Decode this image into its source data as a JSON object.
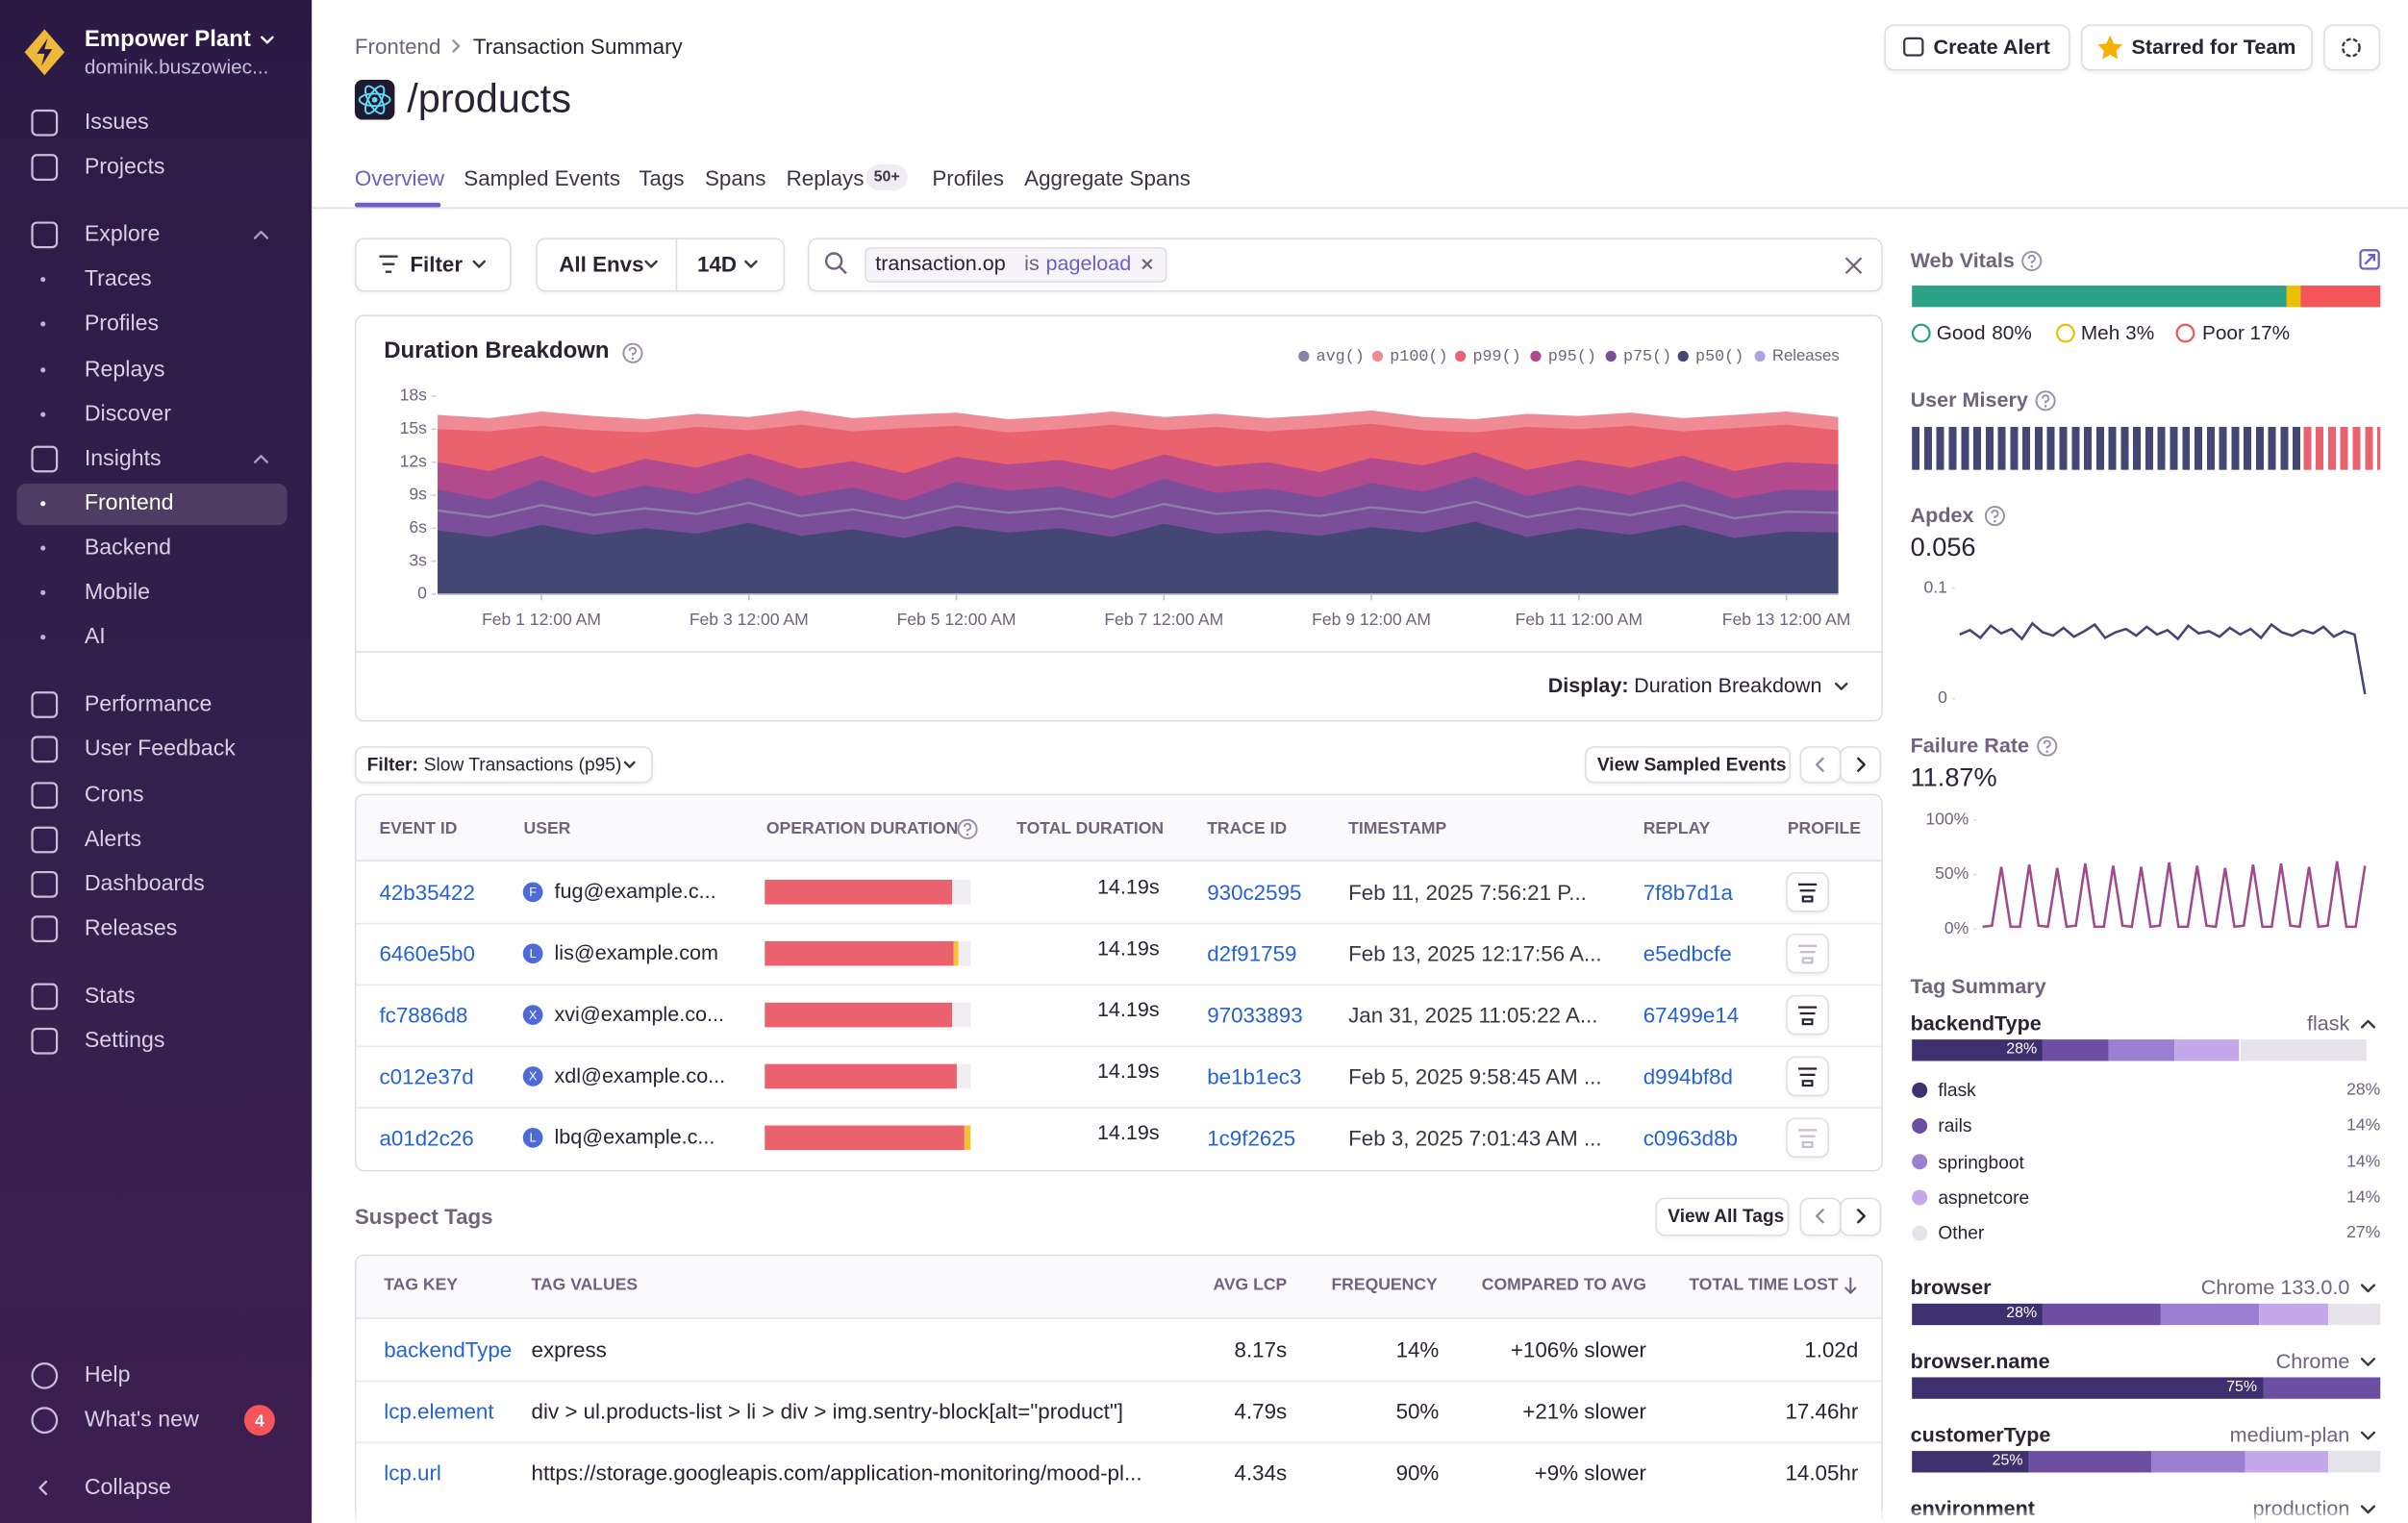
{
  "sidebar": {
    "org": "Empower Plant",
    "user": "dominik.buszowiec...",
    "nav": [
      "Issues",
      "Projects",
      "Explore",
      "Traces",
      "Profiles",
      "Replays",
      "Discover",
      "Insights",
      "Frontend",
      "Backend",
      "Mobile",
      "AI",
      "Performance",
      "User Feedback",
      "Crons",
      "Alerts",
      "Dashboards",
      "Releases",
      "Stats",
      "Settings"
    ],
    "bottom": [
      "Help",
      "What's new",
      "Collapse"
    ],
    "whats_new_count": 4
  },
  "header": {
    "breadcrumbs": [
      "Frontend",
      "Transaction Summary"
    ],
    "title": "/products",
    "buttons": [
      "Create Alert",
      "Starred for Team"
    ],
    "tabs": [
      "Overview",
      "Sampled Events",
      "Tags",
      "Spans",
      "Replays",
      "Profiles",
      "Aggregate Spans"
    ],
    "replays_badge": "50+"
  },
  "filters": {
    "filter": "Filter",
    "env": "All Envs",
    "period": "14D",
    "search_key": "transaction.op",
    "search_op": "is",
    "search_value": "pageload"
  },
  "chart_data": [
    {
      "type": "area",
      "title": "Duration Breakdown",
      "x": [
        "Jan 31 12:00 AM",
        "Jan 31 12:00 PM",
        "Feb 1 12:00 AM",
        "Feb 1 12:00 PM",
        "Feb 2 12:00 AM",
        "Feb 2 12:00 PM",
        "Feb 3 12:00 AM",
        "Feb 3 12:00 PM",
        "Feb 4 12:00 AM",
        "Feb 4 12:00 PM",
        "Feb 5 12:00 AM",
        "Feb 5 12:00 PM",
        "Feb 6 12:00 AM",
        "Feb 6 12:00 PM",
        "Feb 7 12:00 AM",
        "Feb 7 12:00 PM",
        "Feb 8 12:00 AM",
        "Feb 8 12:00 PM",
        "Feb 9 12:00 AM",
        "Feb 9 12:00 PM",
        "Feb 10 12:00 AM",
        "Feb 10 12:00 PM",
        "Feb 11 12:00 AM",
        "Feb 11 12:00 PM",
        "Feb 12 12:00 AM",
        "Feb 12 12:00 PM",
        "Feb 13 12:00 AM",
        "Feb 13 12:00 PM"
      ],
      "xticks": [
        "Feb 1 12:00 AM",
        "Feb 3 12:00 AM",
        "Feb 5 12:00 AM",
        "Feb 7 12:00 AM",
        "Feb 9 12:00 AM",
        "Feb 11 12:00 AM",
        "Feb 13 12:00 AM"
      ],
      "ylim": [
        0,
        18
      ],
      "yticks": [
        0,
        {
          "value": 3,
          "label": "3s"
        },
        {
          "value": 6,
          "label": "6s"
        },
        {
          "value": 9,
          "label": "9s"
        },
        {
          "value": 12,
          "label": "12s"
        },
        {
          "value": 15,
          "label": "15s"
        },
        {
          "value": 18,
          "label": "18s"
        }
      ],
      "series": [
        {
          "name": "avg()",
          "color": "#8b80a8",
          "values": [
            7.6,
            7.0,
            8.1,
            7.2,
            7.8,
            7.3,
            8.3,
            7.1,
            7.7,
            6.9,
            8.0,
            7.4,
            7.8,
            7.0,
            8.2,
            7.3,
            7.6,
            7.1,
            7.9,
            7.4,
            8.4,
            7.0,
            7.8,
            7.2,
            8.1,
            6.9,
            7.5,
            7.4
          ]
        },
        {
          "name": "p100()",
          "color": "#f08a94",
          "values": [
            16.3,
            16.0,
            16.6,
            16.2,
            15.9,
            16.4,
            16.1,
            16.7,
            16.0,
            16.3,
            16.5,
            15.9,
            16.2,
            16.6,
            16.1,
            16.4,
            16.0,
            16.3,
            16.7,
            16.1,
            15.9,
            16.4,
            16.2,
            16.5,
            16.0,
            16.3,
            16.6,
            16.1
          ]
        },
        {
          "name": "p99()",
          "color": "#e9626e",
          "values": [
            15.0,
            14.8,
            15.3,
            14.9,
            14.7,
            15.2,
            14.9,
            15.4,
            14.8,
            15.1,
            15.3,
            14.7,
            15.0,
            15.4,
            14.9,
            15.2,
            14.8,
            15.1,
            15.5,
            14.9,
            14.7,
            15.2,
            15.0,
            15.3,
            14.8,
            15.1,
            15.4,
            14.9
          ]
        },
        {
          "name": "p95()",
          "color": "#b34a8e",
          "values": [
            12.0,
            11.2,
            12.6,
            11.0,
            12.3,
            11.5,
            12.8,
            11.4,
            12.1,
            11.0,
            12.5,
            11.8,
            12.2,
            11.3,
            12.7,
            11.6,
            12.0,
            11.1,
            12.4,
            11.7,
            12.9,
            11.3,
            12.2,
            11.5,
            12.6,
            11.2,
            12.0,
            11.8
          ]
        },
        {
          "name": "p75()",
          "color": "#7a4e99",
          "values": [
            9.5,
            8.6,
            10.4,
            8.8,
            9.9,
            9.1,
            10.6,
            8.9,
            9.7,
            8.5,
            10.2,
            9.4,
            9.8,
            8.7,
            10.5,
            9.2,
            9.6,
            8.8,
            10.1,
            9.3,
            10.7,
            8.9,
            9.9,
            9.0,
            10.3,
            8.7,
            9.5,
            9.4
          ]
        },
        {
          "name": "p50()",
          "color": "#444674",
          "values": [
            5.8,
            5.2,
            6.3,
            5.4,
            6.0,
            5.5,
            6.5,
            5.3,
            5.9,
            5.1,
            6.2,
            5.6,
            6.0,
            5.2,
            6.4,
            5.5,
            5.8,
            5.3,
            6.1,
            5.6,
            6.6,
            5.2,
            6.0,
            5.4,
            6.3,
            5.1,
            5.7,
            5.6
          ]
        }
      ],
      "releases": {
        "label": "Releases",
        "color": "#b0a3e4"
      },
      "display_label": "Display:",
      "display_value": "Duration Breakdown"
    },
    {
      "type": "line",
      "title": "Apdex",
      "value": 0.056,
      "color": "#444674",
      "ylim": [
        0,
        0.1
      ],
      "yticks": [
        0,
        0.1
      ],
      "values": [
        0.058,
        0.062,
        0.055,
        0.066,
        0.059,
        0.063,
        0.054,
        0.068,
        0.06,
        0.057,
        0.064,
        0.056,
        0.061,
        0.067,
        0.055,
        0.06,
        0.063,
        0.057,
        0.065,
        0.058,
        0.062,
        0.054,
        0.066,
        0.059,
        0.061,
        0.056,
        0.064,
        0.058,
        0.063,
        0.055,
        0.067,
        0.06,
        0.057,
        0.062,
        0.059,
        0.065,
        0.056,
        0.061,
        0.058,
        0.004
      ]
    },
    {
      "type": "line",
      "title": "Failure Rate",
      "value": 11.87,
      "value_label": "11.87%",
      "color": "#a04a8c",
      "ylim": [
        0,
        100
      ],
      "yticks": [
        {
          "value": 0,
          "label": "0%"
        },
        {
          "value": 50,
          "label": "50%"
        },
        {
          "value": 100,
          "label": "100%"
        }
      ],
      "values": [
        2,
        3,
        57,
        2,
        2,
        59,
        3,
        2,
        56,
        2,
        3,
        60,
        2,
        2,
        58,
        3,
        2,
        57,
        2,
        3,
        61,
        2,
        2,
        58,
        3,
        2,
        56,
        2,
        3,
        59,
        2,
        2,
        60,
        3,
        2,
        57,
        2,
        3,
        62,
        2,
        2,
        58
      ]
    }
  ],
  "events": {
    "filter_label": "Filter:",
    "filter_value": "Slow Transactions (p95)",
    "button": "View Sampled Events",
    "columns": [
      "EVENT ID",
      "USER",
      "OPERATION DURATION",
      "TOTAL DURATION",
      "TRACE ID",
      "TIMESTAMP",
      "REPLAY",
      "PROFILE"
    ],
    "op_colors": [
      "#e9626e",
      "#f2c230"
    ],
    "rows": [
      {
        "event_id": "42b35422",
        "initial": "F",
        "user": "fug@example.c...",
        "ops": [
          91
        ],
        "total_duration": "14.19s",
        "trace_id": "930c2595",
        "timestamp": "Feb 11, 2025 7:56:21 P...",
        "replay": "7f8b7d1a",
        "profile": true
      },
      {
        "event_id": "6460e5b0",
        "initial": "L",
        "user": "lis@example.com",
        "ops": [
          92,
          2
        ],
        "total_duration": "14.19s",
        "trace_id": "d2f91759",
        "timestamp": "Feb 13, 2025 12:17:56 A...",
        "replay": "e5edbcfe",
        "profile": false
      },
      {
        "event_id": "fc7886d8",
        "initial": "X",
        "user": "xvi@example.co...",
        "ops": [
          91
        ],
        "total_duration": "14.19s",
        "trace_id": "97033893",
        "timestamp": "Jan 31, 2025 11:05:22 A...",
        "replay": "67499e14",
        "profile": true
      },
      {
        "event_id": "c012e37d",
        "initial": "X",
        "user": "xdl@example.co...",
        "ops": [
          93
        ],
        "total_duration": "14.19s",
        "trace_id": "be1b1ec3",
        "timestamp": "Feb 5, 2025 9:58:45 AM ...",
        "replay": "d994bf8d",
        "profile": true
      },
      {
        "event_id": "a01d2c26",
        "initial": "L",
        "user": "lbq@example.c...",
        "ops": [
          97,
          3
        ],
        "total_duration": "14.19s",
        "trace_id": "1c9f2625",
        "timestamp": "Feb 3, 2025 7:01:43 AM ...",
        "replay": "c0963d8b",
        "profile": false
      }
    ]
  },
  "suspect_tags": {
    "title": "Suspect Tags",
    "button": "View All Tags",
    "columns": [
      "TAG KEY",
      "TAG VALUES",
      "AVG LCP",
      "FREQUENCY",
      "COMPARED TO AVG",
      "TOTAL TIME LOST"
    ],
    "rows": [
      [
        "backendType",
        "express",
        "8.17s",
        "14%",
        "+106% slower",
        "1.02d"
      ],
      [
        "lcp.element",
        "div > ul.products-list > li > div > img.sentry-block[alt=\"product\"]",
        "4.79s",
        "50%",
        "+21% slower",
        "17.46hr"
      ],
      [
        "lcp.url",
        "https://storage.googleapis.com/application-monitoring/mood-pl...",
        "4.34s",
        "90%",
        "+9% slower",
        "14.05hr"
      ]
    ]
  },
  "web_vitals": {
    "title": "Web Vitals",
    "items": [
      {
        "label": "Good",
        "value": 80,
        "value_label": "80%",
        "color": "#2ba185"
      },
      {
        "label": "Meh",
        "value": 3,
        "value_label": "3%",
        "color": "#ebc000"
      },
      {
        "label": "Poor",
        "value": 17,
        "value_label": "17%",
        "color": "#f55459"
      }
    ]
  },
  "user_misery": {
    "title": "User Misery"
  },
  "tag_summary": {
    "title": "Tag Summary",
    "segment_colors": [
      "#3e2f6e",
      "#6c4fa3",
      "#9b7fd0",
      "#c3a9ea",
      "#e6e3ea"
    ],
    "tags": [
      {
        "key": "backendType",
        "top_value": "flask",
        "segments": [
          28,
          14,
          14,
          14,
          27
        ],
        "segment_label": "28%",
        "values": [
          {
            "name": "flask",
            "pct": "28%"
          },
          {
            "name": "rails",
            "pct": "14%"
          },
          {
            "name": "springboot",
            "pct": "14%"
          },
          {
            "name": "aspnetcore",
            "pct": "14%"
          },
          {
            "name": "Other",
            "pct": "27%"
          }
        ]
      },
      {
        "key": "browser",
        "top_value": "Chrome 133.0.0",
        "segments": [
          28,
          25,
          21,
          15,
          11
        ],
        "segment_label": "28%"
      },
      {
        "key": "browser.name",
        "top_value": "Chrome",
        "segments": [
          75,
          25
        ],
        "segment_label": "75%"
      },
      {
        "key": "customerType",
        "top_value": "medium-plan",
        "segments": [
          25,
          26,
          20,
          18,
          11
        ],
        "segment_label": "25%"
      },
      {
        "key": "environment",
        "top_value": "production"
      }
    ]
  }
}
